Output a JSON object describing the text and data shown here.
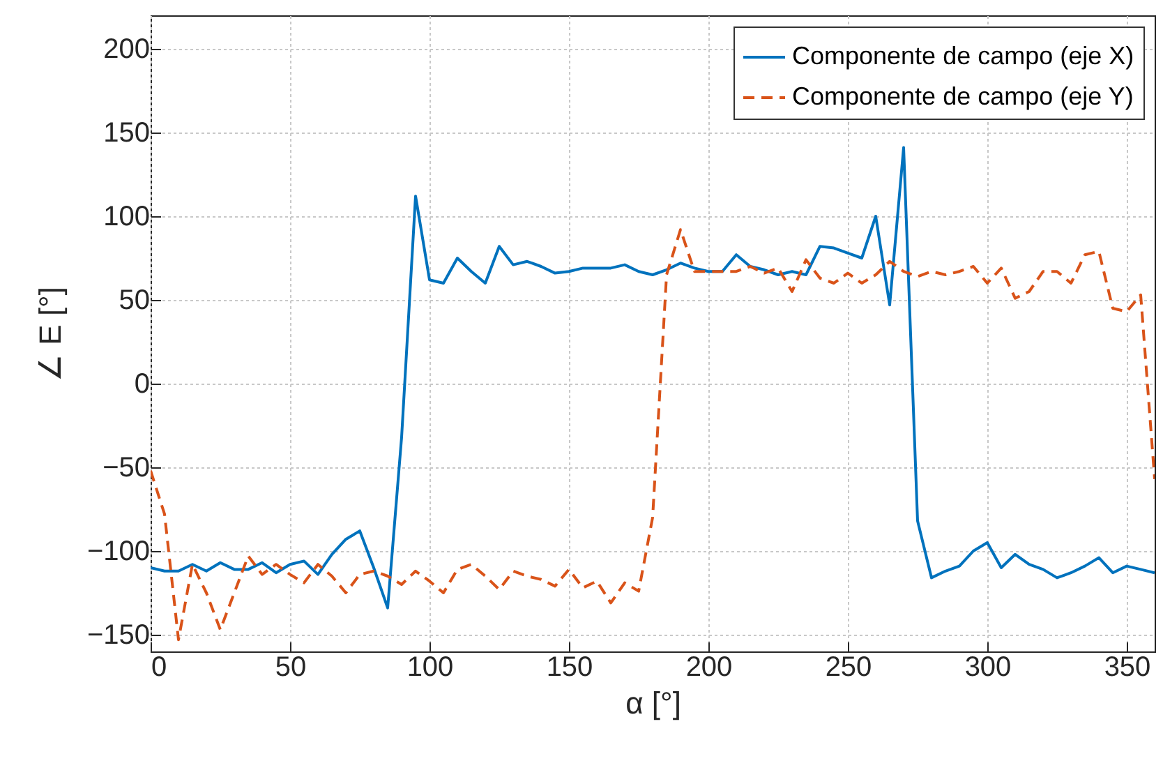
{
  "chart_data": {
    "type": "line",
    "xlabel": "α  [°]",
    "ylabel": "∠ E  [°]",
    "x": [
      0,
      5,
      10,
      15,
      20,
      25,
      30,
      35,
      40,
      45,
      50,
      55,
      60,
      65,
      70,
      75,
      80,
      85,
      90,
      95,
      100,
      105,
      110,
      115,
      120,
      125,
      130,
      135,
      140,
      145,
      150,
      155,
      160,
      165,
      170,
      175,
      180,
      185,
      190,
      195,
      200,
      205,
      210,
      215,
      220,
      225,
      230,
      235,
      240,
      245,
      250,
      255,
      260,
      265,
      270,
      275,
      280,
      285,
      290,
      295,
      300,
      305,
      310,
      315,
      320,
      325,
      330,
      335,
      340,
      345,
      350,
      355,
      360
    ],
    "series": [
      {
        "name": "Componente de campo (eje X)",
        "color": "#0072bd",
        "line_style": "solid",
        "values": [
          -110,
          -112,
          -112,
          -108,
          -112,
          -107,
          -111,
          -111,
          -107,
          -113,
          -108,
          -106,
          -114,
          -102,
          -93,
          -88,
          -110,
          -134,
          -32,
          112,
          62,
          60,
          75,
          67,
          60,
          82,
          71,
          73,
          70,
          66,
          67,
          69,
          69,
          69,
          71,
          67,
          65,
          68,
          72,
          69,
          67,
          67,
          77,
          70,
          68,
          65,
          67,
          65,
          82,
          81,
          78,
          75,
          100,
          47,
          141,
          -82,
          -116,
          -112,
          -109,
          -100,
          -95,
          -110,
          -102,
          -108,
          -111,
          -116,
          -113,
          -109,
          -104,
          -113,
          -109,
          -111,
          -113
        ]
      },
      {
        "name": "Componente de campo (eje Y)",
        "color": "#d95319",
        "line_style": "dashed",
        "values": [
          -52,
          -78,
          -153,
          -108,
          -125,
          -147,
          -125,
          -103,
          -114,
          -108,
          -114,
          -119,
          -108,
          -115,
          -125,
          -114,
          -112,
          -115,
          -120,
          -112,
          -118,
          -125,
          -111,
          -108,
          -115,
          -123,
          -112,
          -115,
          -117,
          -121,
          -111,
          -122,
          -118,
          -131,
          -119,
          -124,
          -80,
          65,
          92,
          67,
          67,
          67,
          67,
          70,
          66,
          69,
          55,
          74,
          63,
          60,
          66,
          60,
          65,
          73,
          67,
          64,
          67,
          65,
          67,
          70,
          60,
          69,
          51,
          55,
          67,
          67,
          60,
          77,
          79,
          45,
          43,
          53,
          -57
        ]
      }
    ],
    "xlim": [
      0,
      360
    ],
    "xticks": [
      0,
      50,
      100,
      150,
      200,
      250,
      300,
      350
    ],
    "ylim": [
      -160,
      220
    ],
    "yticks": [
      -150,
      -100,
      -50,
      0,
      50,
      100,
      150,
      200
    ],
    "grid": true,
    "legend": "top right",
    "marker": "none"
  }
}
